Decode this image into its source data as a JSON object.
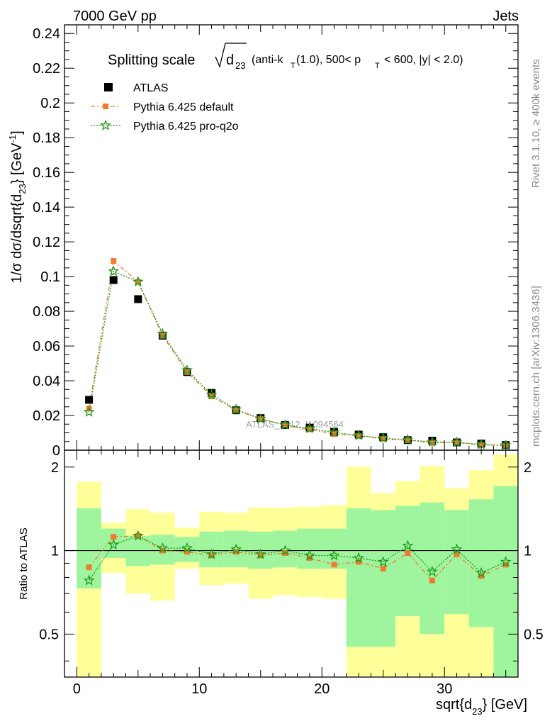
{
  "header": {
    "left": "7000 GeV pp",
    "right": "Jets"
  },
  "side": {
    "rivet": "Rivet 3.1.10, ≥ 400k events",
    "mcplots": "mcplots.cern.ch [arXiv:1306.3436]"
  },
  "watermark": "ATLAS_2012_I1094564",
  "colors": {
    "atlas": "#000000",
    "default": "#f07a30",
    "proq2o": "#1a9a1a",
    "band_inner": "#9ef59e",
    "band_outer": "#ffff99"
  },
  "chart_data": [
    {
      "type": "scatter",
      "panel": "main",
      "title_parts": {
        "a": "Splitting scale",
        "b": "d",
        "b_sub": "23",
        "c": "(anti-k",
        "c_sub": "T",
        "d": "(1.0), 500< p",
        "d_sub": "T",
        "e": "< 600, |y| < 2.0)"
      },
      "ylabel": "1/σ dσ/dsqrt{d",
      "ylabel_sub": "23",
      "ylabel_end": "} [GeV",
      "ylabel_sup": "-1",
      "ylabel_close": "]",
      "ylim": [
        0,
        0.245
      ],
      "yticks": [
        "0",
        "0.02",
        "0.04",
        "0.06",
        "0.08",
        "0.1",
        "0.12",
        "0.14",
        "0.16",
        "0.18",
        "0.2",
        "0.22",
        "0.24"
      ],
      "xlim": [
        -1,
        36
      ],
      "x": [
        1,
        3,
        5,
        7,
        9,
        11,
        13,
        15,
        17,
        19,
        21,
        23,
        25,
        27,
        29,
        31,
        33,
        35
      ],
      "series": [
        {
          "name": "ATLAS",
          "marker": "square",
          "values": [
            0.029,
            0.098,
            0.087,
            0.066,
            0.045,
            0.033,
            0.023,
            0.0185,
            0.0145,
            0.013,
            0.0105,
            0.009,
            0.0075,
            0.0058,
            0.0055,
            0.0045,
            0.0038,
            0.003
          ]
        },
        {
          "name": "Pythia 6.425 default",
          "marker": "circle",
          "values": [
            0.024,
            0.109,
            0.097,
            0.066,
            0.045,
            0.031,
            0.023,
            0.018,
            0.0145,
            0.012,
            0.0093,
            0.0082,
            0.0065,
            0.0057,
            0.0043,
            0.0044,
            0.0031,
            0.0027
          ]
        },
        {
          "name": "Pythia 6.425 pro-q2o",
          "marker": "star",
          "values": [
            0.022,
            0.103,
            0.097,
            0.067,
            0.046,
            0.032,
            0.0235,
            0.018,
            0.0145,
            0.0125,
            0.0103,
            0.0085,
            0.007,
            0.006,
            0.0047,
            0.0046,
            0.0032,
            0.0028
          ]
        }
      ]
    },
    {
      "type": "scatter",
      "panel": "ratio",
      "ylabel": "Ratio to ATLAS",
      "ylim": [
        0.35,
        2.3
      ],
      "yticks": [
        "0.5",
        "1",
        "2"
      ],
      "xlabel": "sqrt{d",
      "xlabel_sub": "23",
      "xlabel_end": "} [GeV]",
      "xticks": [
        "0",
        "10",
        "20",
        "30"
      ],
      "x": [
        1,
        3,
        5,
        7,
        9,
        11,
        13,
        15,
        17,
        19,
        21,
        23,
        25,
        27,
        29,
        31,
        33,
        35
      ],
      "bins": [
        [
          0,
          2
        ],
        [
          2,
          4
        ],
        [
          4,
          6
        ],
        [
          6,
          8
        ],
        [
          8,
          10
        ],
        [
          10,
          12
        ],
        [
          12,
          14
        ],
        [
          14,
          16
        ],
        [
          16,
          18
        ],
        [
          18,
          20
        ],
        [
          20,
          22
        ],
        [
          22,
          24
        ],
        [
          24,
          26
        ],
        [
          26,
          28
        ],
        [
          28,
          30
        ],
        [
          30,
          32
        ],
        [
          32,
          34
        ],
        [
          34,
          36
        ]
      ],
      "band_inner": [
        [
          0.73,
          1.42
        ],
        [
          0.94,
          1.2
        ],
        [
          0.88,
          1.13
        ],
        [
          0.89,
          1.14
        ],
        [
          0.91,
          1.12
        ],
        [
          0.87,
          1.17
        ],
        [
          0.87,
          1.18
        ],
        [
          0.86,
          1.17
        ],
        [
          0.87,
          1.18
        ],
        [
          0.86,
          1.2
        ],
        [
          0.86,
          1.2
        ],
        [
          0.45,
          1.42
        ],
        [
          0.45,
          1.4
        ],
        [
          0.58,
          1.45
        ],
        [
          0.5,
          1.49
        ],
        [
          0.59,
          1.4
        ],
        [
          0.53,
          1.53
        ],
        [
          0.35,
          1.71
        ]
      ],
      "band_outer": [
        [
          0.35,
          1.77
        ],
        [
          0.83,
          1.26
        ],
        [
          0.7,
          1.41
        ],
        [
          0.66,
          1.37
        ],
        [
          0.86,
          1.21
        ],
        [
          0.75,
          1.38
        ],
        [
          0.76,
          1.37
        ],
        [
          0.67,
          1.43
        ],
        [
          0.69,
          1.43
        ],
        [
          0.68,
          1.44
        ],
        [
          0.67,
          1.46
        ],
        [
          0.35,
          2.01
        ],
        [
          0.35,
          1.61
        ],
        [
          0.35,
          1.78
        ],
        [
          0.35,
          2.02
        ],
        [
          0.35,
          1.68
        ],
        [
          0.35,
          1.95
        ],
        [
          0.35,
          2.22
        ]
      ],
      "series": [
        {
          "name": "Pythia 6.425 default",
          "values": [
            0.87,
            1.12,
            1.13,
            1.0,
            0.99,
            0.96,
            0.99,
            0.96,
            0.98,
            0.94,
            0.89,
            0.91,
            0.86,
            0.98,
            0.78,
            0.97,
            0.81,
            0.89
          ]
        },
        {
          "name": "Pythia 6.425 pro-q2o",
          "values": [
            0.78,
            1.05,
            1.13,
            1.02,
            1.02,
            0.97,
            1.01,
            0.97,
            1.0,
            0.96,
            0.96,
            0.94,
            0.91,
            1.04,
            0.84,
            1.01,
            0.83,
            0.91
          ]
        }
      ]
    }
  ]
}
